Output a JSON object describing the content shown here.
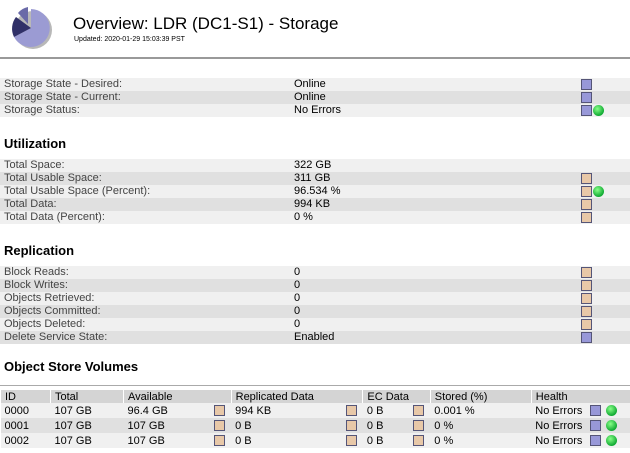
{
  "header": {
    "title": "Overview: LDR (DC1-S1) - Storage",
    "updated": "Updated: 2020-01-29 15:03:39 PST"
  },
  "status": [
    {
      "label": "Storage State - Desired:",
      "value": "Online",
      "icons": [
        "table-icon"
      ]
    },
    {
      "label": "Storage State - Current:",
      "value": "Online",
      "icons": [
        "table-icon"
      ]
    },
    {
      "label": "Storage Status:",
      "value": "No Errors",
      "icons": [
        "table-icon",
        "ok-icon"
      ]
    }
  ],
  "utilization": {
    "heading": "Utilization",
    "rows": [
      {
        "label": "Total Space:",
        "value": "322 GB",
        "icons": []
      },
      {
        "label": "Total Usable Space:",
        "value": "311 GB",
        "icons": [
          "chart-icon"
        ]
      },
      {
        "label": "Total Usable Space (Percent):",
        "value": "96.534 %",
        "icons": [
          "chart-icon",
          "ok-icon"
        ]
      },
      {
        "label": "Total Data:",
        "value": "994 KB",
        "icons": [
          "chart-icon"
        ]
      },
      {
        "label": "Total Data (Percent):",
        "value": "0 %",
        "icons": [
          "chart-icon"
        ]
      }
    ]
  },
  "replication": {
    "heading": "Replication",
    "rows": [
      {
        "label": "Block Reads:",
        "value": "0",
        "icons": [
          "line-chart-icon"
        ]
      },
      {
        "label": "Block Writes:",
        "value": "0",
        "icons": [
          "line-chart-icon"
        ]
      },
      {
        "label": "Objects Retrieved:",
        "value": "0",
        "icons": [
          "line-chart-icon"
        ]
      },
      {
        "label": "Objects Committed:",
        "value": "0",
        "icons": [
          "line-chart-icon"
        ]
      },
      {
        "label": "Objects Deleted:",
        "value": "0",
        "icons": [
          "line-chart-icon"
        ]
      },
      {
        "label": "Delete Service State:",
        "value": "Enabled",
        "icons": [
          "table-icon"
        ]
      }
    ]
  },
  "volumes": {
    "heading": "Object Store Volumes",
    "columns": [
      "ID",
      "Total",
      "Available",
      "Replicated Data",
      "EC Data",
      "Stored (%)",
      "Health"
    ],
    "rows": [
      {
        "id": "0000",
        "total": "107 GB",
        "available": "96.4 GB",
        "replicated": "994 KB",
        "ec": "0 B",
        "stored": "0.001 %",
        "health": "No Errors"
      },
      {
        "id": "0001",
        "total": "107 GB",
        "available": "107 GB",
        "replicated": "0 B",
        "ec": "0 B",
        "stored": "0 %",
        "health": "No Errors"
      },
      {
        "id": "0002",
        "total": "107 GB",
        "available": "107 GB",
        "replicated": "0 B",
        "ec": "0 B",
        "stored": "0 %",
        "health": "No Errors"
      }
    ]
  }
}
